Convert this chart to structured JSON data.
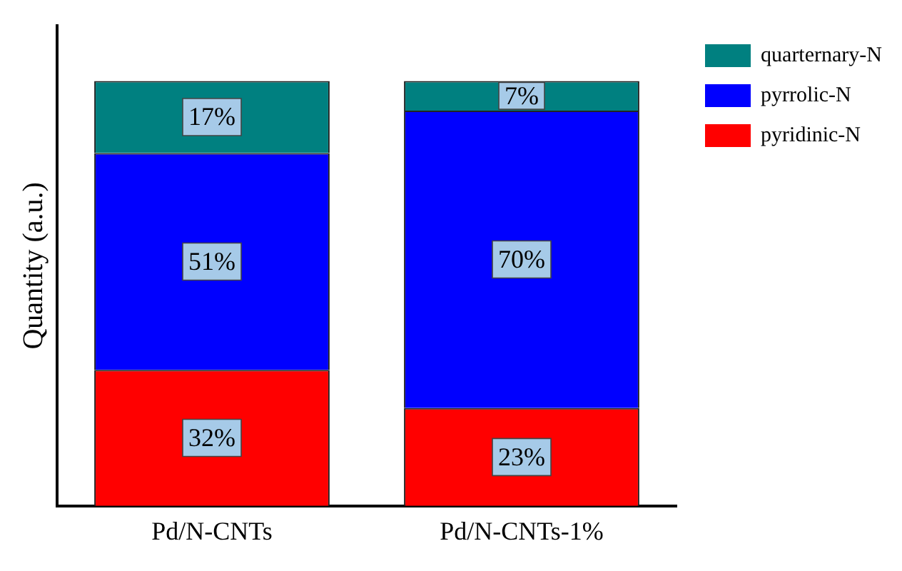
{
  "chart_data": {
    "type": "bar",
    "ylabel": "Quantity (a.u.)",
    "categories": [
      "Pd/N-CNTs",
      "Pd/N-CNTs-1%"
    ],
    "stacked": true,
    "ylim": [
      0,
      113
    ],
    "tick_labels": "x",
    "legend": "top right",
    "grid": false,
    "series": [
      {
        "name": "pyridinic-N",
        "color": "#ff0000",
        "values": [
          32,
          23
        ],
        "value_labels": [
          "32%",
          "23%"
        ]
      },
      {
        "name": "pyrrolic-N",
        "color": "#0000ff",
        "values": [
          51,
          70
        ],
        "value_labels": [
          "51%",
          "70%"
        ]
      },
      {
        "name": "quarternary-N",
        "color": "#008080",
        "values": [
          17,
          7
        ],
        "value_labels": [
          "17%",
          "7%"
        ]
      }
    ]
  }
}
